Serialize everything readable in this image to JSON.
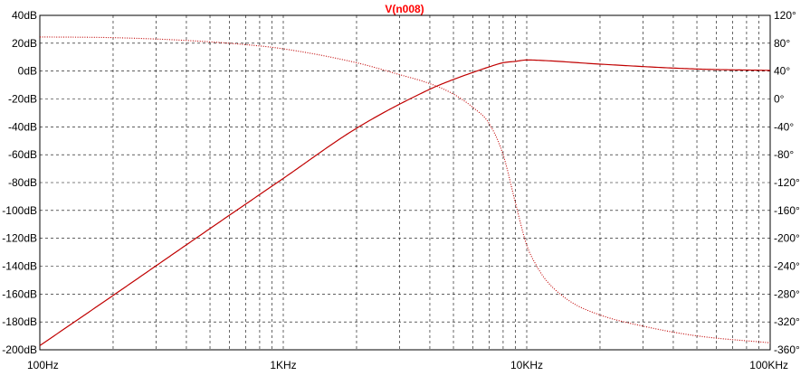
{
  "chart_data": {
    "type": "line",
    "title": "V(n008)",
    "title_color": "#ff0000",
    "trace_color": "#c00000",
    "x_scale": "log",
    "xlim": [
      100,
      100000
    ],
    "x_ticks": [
      {
        "value": 100,
        "label": "100Hz"
      },
      {
        "value": 1000,
        "label": "1KHz"
      },
      {
        "value": 10000,
        "label": "10KHz"
      },
      {
        "value": 100000,
        "label": "100KHz"
      }
    ],
    "y_left": {
      "unit": "dB",
      "ylim": [
        -200,
        40
      ],
      "ticks": [
        {
          "value": 40,
          "label": "40dB"
        },
        {
          "value": 20,
          "label": "20dB"
        },
        {
          "value": 0,
          "label": "0dB"
        },
        {
          "value": -20,
          "label": "-20dB"
        },
        {
          "value": -40,
          "label": "-40dB"
        },
        {
          "value": -60,
          "label": "-60dB"
        },
        {
          "value": -80,
          "label": "-80dB"
        },
        {
          "value": -100,
          "label": "-100dB"
        },
        {
          "value": -120,
          "label": "-120dB"
        },
        {
          "value": -140,
          "label": "-140dB"
        },
        {
          "value": -160,
          "label": "-160dB"
        },
        {
          "value": -180,
          "label": "-180dB"
        },
        {
          "value": -200,
          "label": "-200dB"
        }
      ]
    },
    "y_right": {
      "unit": "°",
      "ylim": [
        -360,
        120
      ],
      "ticks": [
        {
          "value": 120,
          "label": "120°"
        },
        {
          "value": 80,
          "label": "80°"
        },
        {
          "value": 40,
          "label": "40°"
        },
        {
          "value": 0,
          "label": "0°"
        },
        {
          "value": -40,
          "label": "-40°"
        },
        {
          "value": -80,
          "label": "-80°"
        },
        {
          "value": -120,
          "label": "-120°"
        },
        {
          "value": -160,
          "label": "-160°"
        },
        {
          "value": -200,
          "label": "-200°"
        },
        {
          "value": -240,
          "label": "-240°"
        },
        {
          "value": -280,
          "label": "-280°"
        },
        {
          "value": -320,
          "label": "-320°"
        },
        {
          "value": -360,
          "label": "-360°"
        }
      ]
    },
    "grid": true,
    "series": [
      {
        "quantity": "magnitude",
        "axis": "left",
        "line_style": "solid",
        "x": [
          100,
          200,
          500,
          1000,
          2000,
          4000,
          5000,
          6000,
          7000,
          8000,
          9000,
          10000,
          12000,
          20000,
          50000,
          100000
        ],
        "y": [
          -197,
          -161,
          -113,
          -77,
          -41,
          -13,
          -6,
          -1,
          3,
          6,
          7,
          8,
          7.5,
          5,
          1.5,
          0.5
        ]
      },
      {
        "quantity": "phase",
        "axis": "right",
        "line_style": "dotted",
        "x": [
          100,
          200,
          400,
          700,
          1000,
          2000,
          3000,
          4000,
          5000,
          6000,
          7000,
          8000,
          9000,
          10000,
          11000,
          12000,
          15000,
          20000,
          30000,
          50000,
          100000
        ],
        "y": [
          89,
          88,
          84,
          78,
          72,
          52,
          35,
          22,
          7,
          -12,
          -35,
          -80,
          -150,
          -210,
          -240,
          -260,
          -290,
          -310,
          -326,
          -340,
          -350
        ]
      }
    ]
  }
}
